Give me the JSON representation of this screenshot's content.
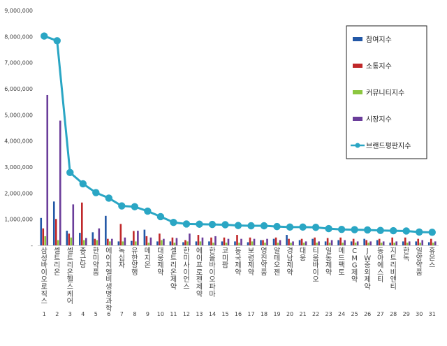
{
  "chart_data": {
    "type": "bar",
    "title": "",
    "xlabel": "",
    "ylabel": "",
    "ylim": [
      0,
      9000000
    ],
    "y_ticks": [
      "-",
      "1,000,000",
      "2,000,000",
      "3,000,000",
      "4,000,000",
      "5,000,000",
      "6,000,000",
      "7,000,000",
      "8,000,000",
      "9,000,000"
    ],
    "grid": false,
    "legend_position": "right",
    "categories": [
      "삼성바이오로직스",
      "셀트리온",
      "셀트리온헬스케어",
      "종근당",
      "한미약품",
      "에이치엘비생명과학",
      "녹십자",
      "유한양행",
      "메지온",
      "대웅제약",
      "셀트리온제약",
      "한미사이언스",
      "에이프로젠제약",
      "한올바이오파마",
      "코미팜",
      "동국제약",
      "보령제약",
      "영진약품",
      "알테오젠",
      "경남제약",
      "대웅",
      "티움바이오",
      "일동제약",
      "메드팩토",
      "CMG제약",
      "JW중외제약",
      "동아에스티",
      "지트리비앤티",
      "한독",
      "일양약품",
      "휴온스"
    ],
    "ranks": [
      "1",
      "2",
      "3",
      "4",
      "5",
      "6",
      "7",
      "8",
      "9",
      "10",
      "11",
      "12",
      "13",
      "14",
      "15",
      "16",
      "17",
      "18",
      "19",
      "20",
      "21",
      "22",
      "23",
      "24",
      "25",
      "26",
      "27",
      "28",
      "29",
      "30",
      "31"
    ],
    "series": [
      {
        "name": "참여지수",
        "kind": "bar",
        "color": "#2257a6",
        "values": [
          1050000,
          1680000,
          560000,
          480000,
          500000,
          1130000,
          150000,
          170000,
          600000,
          150000,
          150000,
          120000,
          150000,
          150000,
          150000,
          150000,
          120000,
          200000,
          250000,
          400000,
          200000,
          250000,
          150000,
          200000,
          150000,
          250000,
          200000,
          100000,
          150000,
          150000,
          120000
        ]
      },
      {
        "name": "소통지수",
        "kind": "bar",
        "color": "#c0282a",
        "values": [
          650000,
          1010000,
          450000,
          1640000,
          250000,
          250000,
          820000,
          550000,
          350000,
          450000,
          300000,
          200000,
          400000,
          300000,
          300000,
          400000,
          300000,
          200000,
          300000,
          250000,
          250000,
          300000,
          280000,
          300000,
          250000,
          200000,
          250000,
          300000,
          300000,
          250000,
          250000
        ]
      },
      {
        "name": "커뮤니티지수",
        "kind": "bar",
        "color": "#8cc63f",
        "values": [
          350000,
          200000,
          300000,
          200000,
          200000,
          150000,
          150000,
          150000,
          100000,
          200000,
          100000,
          150000,
          150000,
          100000,
          100000,
          100000,
          150000,
          100000,
          100000,
          100000,
          100000,
          100000,
          100000,
          100000,
          100000,
          100000,
          100000,
          100000,
          100000,
          100000,
          100000
        ]
      },
      {
        "name": "시장지수",
        "kind": "bar",
        "color": "#6a3d9a",
        "values": [
          5760000,
          4780000,
          1570000,
          280000,
          650000,
          250000,
          300000,
          560000,
          300000,
          250000,
          280000,
          450000,
          300000,
          350000,
          250000,
          250000,
          250000,
          250000,
          200000,
          150000,
          150000,
          150000,
          200000,
          200000,
          150000,
          150000,
          150000,
          150000,
          150000,
          200000,
          150000
        ]
      },
      {
        "name": "브랜드평판지수",
        "kind": "line",
        "color": "#2aa6c4",
        "values": [
          8020000,
          7840000,
          2790000,
          2360000,
          2020000,
          1810000,
          1510000,
          1480000,
          1310000,
          1100000,
          880000,
          820000,
          810000,
          800000,
          790000,
          760000,
          750000,
          750000,
          720000,
          700000,
          700000,
          690000,
          640000,
          610000,
          600000,
          590000,
          570000,
          560000,
          550000,
          510000,
          500000
        ]
      }
    ]
  }
}
